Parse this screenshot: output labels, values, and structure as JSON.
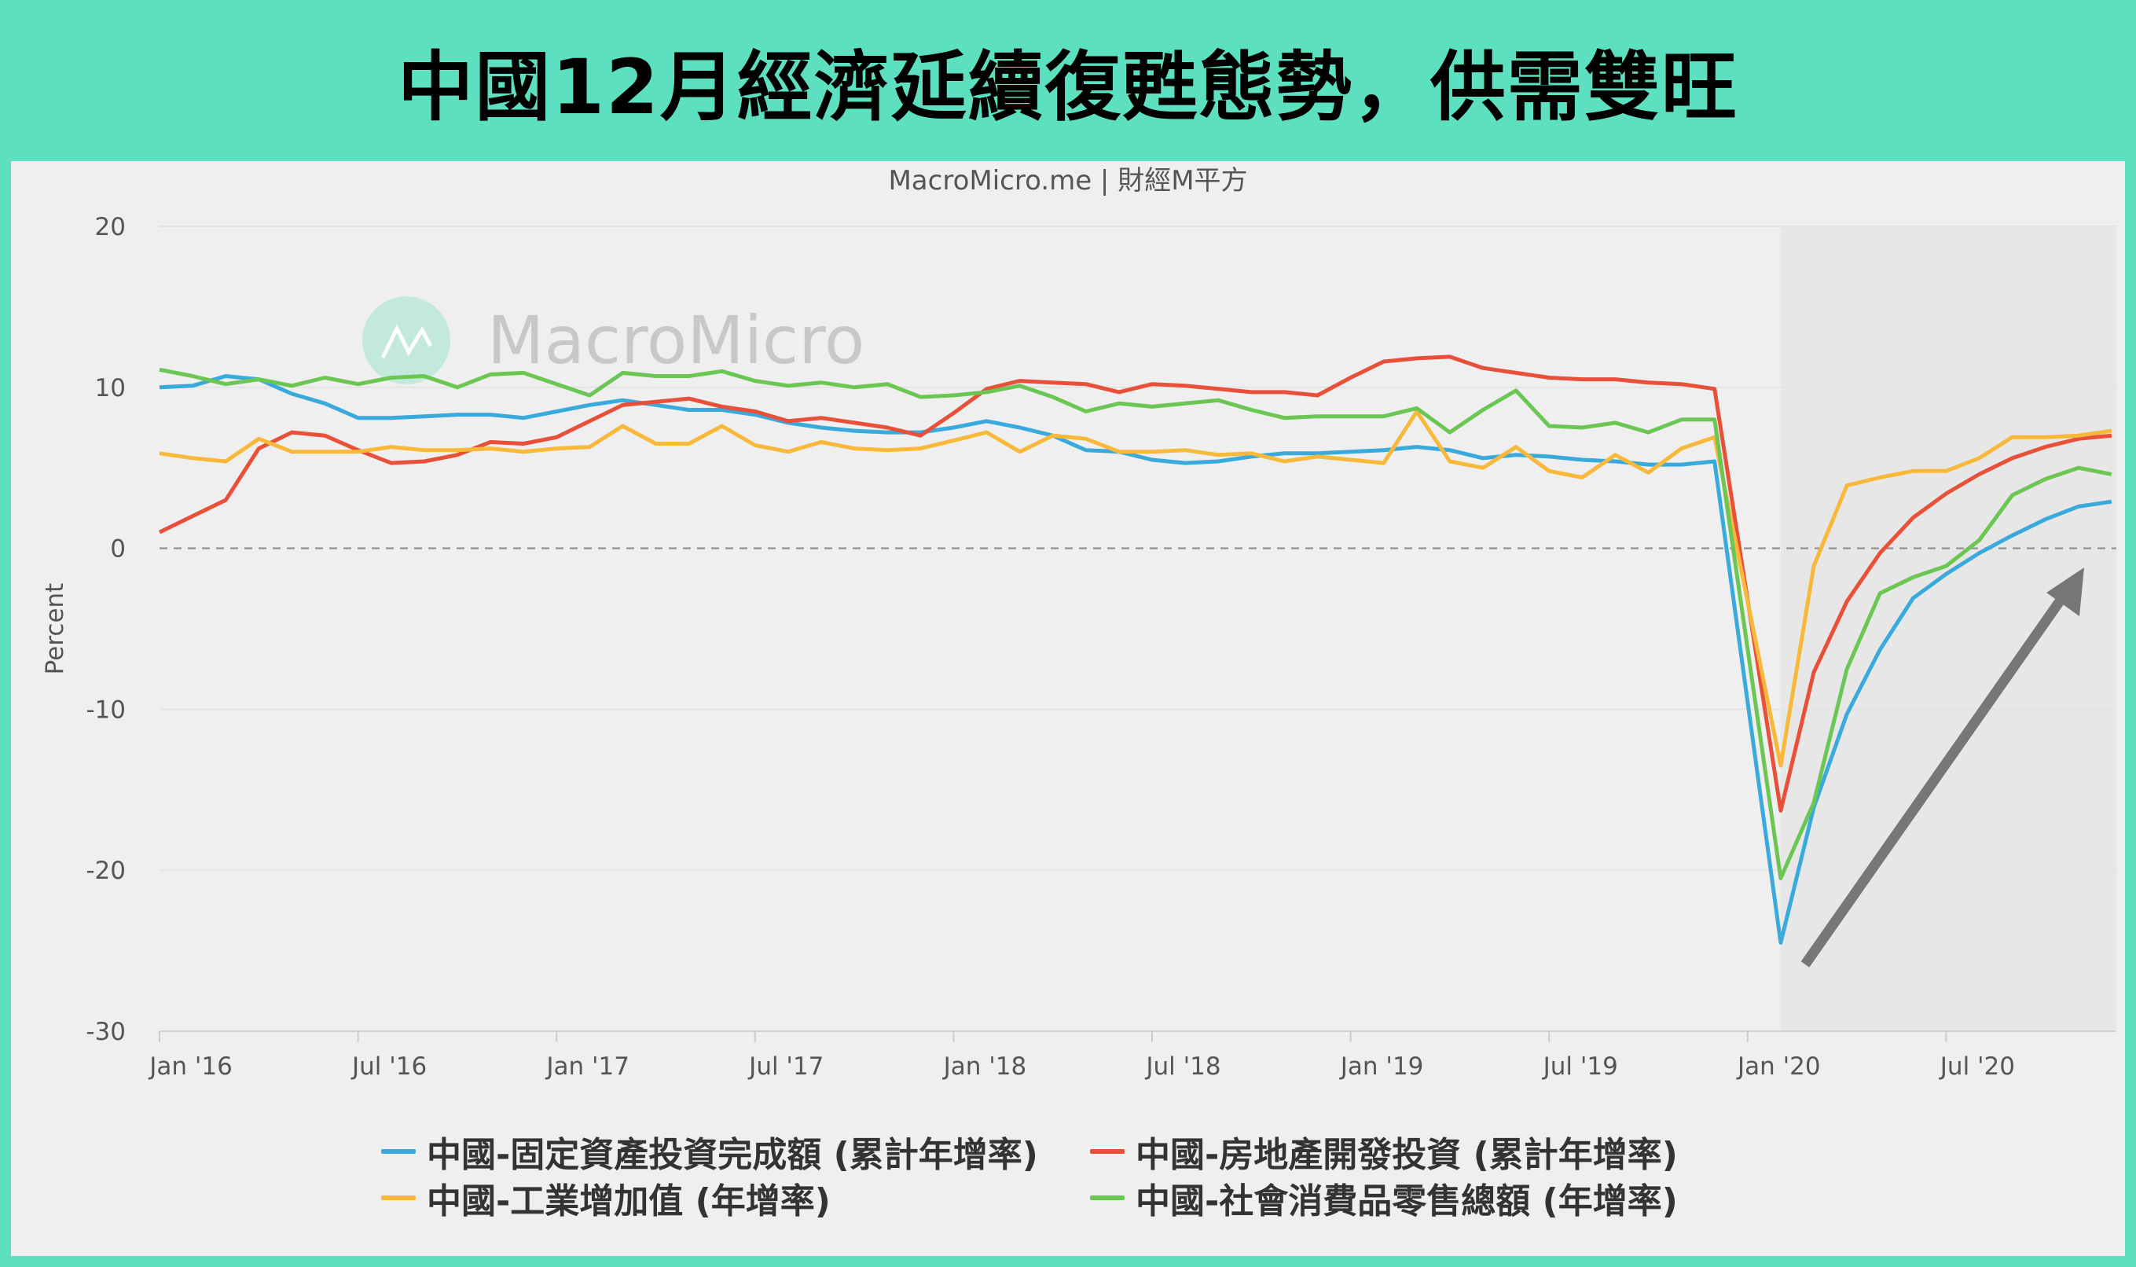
{
  "header": {
    "title": "中國12月經濟延續復甦態勢，供需雙旺"
  },
  "chart_data": {
    "type": "line",
    "source": "MacroMicro.me | 財經M平方",
    "watermark": "MacroMicro",
    "ylabel": "Percent",
    "xlabel": "",
    "ylim": [
      -30,
      20
    ],
    "yticks": [
      20,
      10,
      0,
      -10,
      -20,
      -30
    ],
    "x_start": "2016-01",
    "x_end": "2020-12",
    "xtick_labels": [
      "Jan '16",
      "Jul '16",
      "Jan '17",
      "Jul '17",
      "Jan '18",
      "Jul '18",
      "Jan '19",
      "Jul '19",
      "Jan '20",
      "Jul '20"
    ],
    "xtick_month_index": [
      0,
      6,
      12,
      18,
      24,
      30,
      36,
      42,
      48,
      54
    ],
    "zero_line": "dashed",
    "shaded_from_month_index": 49,
    "annotation": "upward-arrow from Feb 2020 trough toward zero line",
    "series": [
      {
        "name": "中國-固定資產投資完成額 (累計年增率)",
        "color": "#3aa9dc",
        "values": [
          10.0,
          10.1,
          10.7,
          10.5,
          9.6,
          9.0,
          8.1,
          8.1,
          8.2,
          8.3,
          8.3,
          8.1,
          8.5,
          8.9,
          9.2,
          8.9,
          8.6,
          8.6,
          8.3,
          7.8,
          7.5,
          7.3,
          7.2,
          7.2,
          7.5,
          7.9,
          7.5,
          7.0,
          6.1,
          6.0,
          5.5,
          5.3,
          5.4,
          5.7,
          5.9,
          5.9,
          6.0,
          6.1,
          6.3,
          6.1,
          5.6,
          5.8,
          5.7,
          5.5,
          5.4,
          5.2,
          5.2,
          5.4,
          null,
          -24.5,
          -16.1,
          -10.3,
          -6.3,
          -3.1,
          -1.6,
          -0.3,
          0.8,
          1.8,
          2.6,
          2.9
        ]
      },
      {
        "name": "中國-房地產開發投資 (累計年增率)",
        "color": "#e8503a",
        "values": [
          1.0,
          2.0,
          3.0,
          6.2,
          7.2,
          7.0,
          6.1,
          5.3,
          5.4,
          5.8,
          6.6,
          6.5,
          6.9,
          7.9,
          8.9,
          9.1,
          9.3,
          8.8,
          8.5,
          7.9,
          8.1,
          7.8,
          7.5,
          7.0,
          8.4,
          9.9,
          10.4,
          10.3,
          10.2,
          9.7,
          10.2,
          10.1,
          9.9,
          9.7,
          9.7,
          9.5,
          10.6,
          11.6,
          11.8,
          11.9,
          11.2,
          10.9,
          10.6,
          10.5,
          10.5,
          10.3,
          10.2,
          9.9,
          null,
          -16.3,
          -7.7,
          -3.3,
          -0.3,
          1.9,
          3.4,
          4.6,
          5.6,
          6.3,
          6.8,
          7.0
        ]
      },
      {
        "name": "中國-工業增加值 (年增率)",
        "color": "#f8b93a",
        "values": [
          5.9,
          5.6,
          5.4,
          6.8,
          6.0,
          6.0,
          6.0,
          6.3,
          6.1,
          6.1,
          6.2,
          6.0,
          6.2,
          6.3,
          7.6,
          6.5,
          6.5,
          7.6,
          6.4,
          6.0,
          6.6,
          6.2,
          6.1,
          6.2,
          6.7,
          7.2,
          6.0,
          7.0,
          6.8,
          6.0,
          6.0,
          6.1,
          5.8,
          5.9,
          5.4,
          5.7,
          5.5,
          5.3,
          8.5,
          5.4,
          5.0,
          6.3,
          4.8,
          4.4,
          5.8,
          4.7,
          6.2,
          6.9,
          null,
          -13.5,
          -1.1,
          3.9,
          4.4,
          4.8,
          4.8,
          5.6,
          6.9,
          6.9,
          7.0,
          7.3
        ]
      },
      {
        "name": "中國-社會消費品零售總額 (年增率)",
        "color": "#6cc653",
        "values": [
          11.1,
          10.7,
          10.2,
          10.5,
          10.1,
          10.6,
          10.2,
          10.6,
          10.7,
          10.0,
          10.8,
          10.9,
          10.2,
          9.5,
          10.9,
          10.7,
          10.7,
          11.0,
          10.4,
          10.1,
          10.3,
          10.0,
          10.2,
          9.4,
          9.5,
          9.7,
          10.1,
          9.4,
          8.5,
          9.0,
          8.8,
          9.0,
          9.2,
          8.6,
          8.1,
          8.2,
          8.2,
          8.2,
          8.7,
          7.2,
          8.6,
          9.8,
          7.6,
          7.5,
          7.8,
          7.2,
          8.0,
          8.0,
          null,
          -20.5,
          -15.8,
          -7.5,
          -2.8,
          -1.8,
          -1.1,
          0.5,
          3.3,
          4.3,
          5.0,
          4.6
        ]
      }
    ]
  }
}
